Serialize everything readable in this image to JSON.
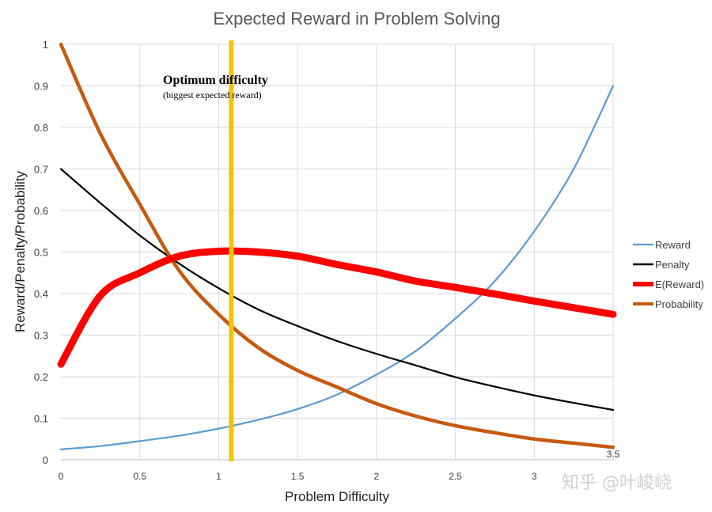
{
  "watermark": "知乎 @叶峻峣",
  "chart_data": {
    "type": "line",
    "title": "Expected Reward in Problem Solving",
    "xlabel": "Problem Difficulty",
    "ylabel": "Reward/Penalty/Probability",
    "xlim": [
      0,
      3.5
    ],
    "ylim": [
      0,
      1
    ],
    "xticks": [
      "0",
      "0.5",
      "1",
      "1.5",
      "2",
      "2.5",
      "3",
      "3.5"
    ],
    "yticks": [
      "0",
      "0.1",
      "0.2",
      "0.3",
      "0.4",
      "0.5",
      "0.6",
      "0.7",
      "0.8",
      "0.9",
      "1"
    ],
    "grid": "vertical and horizontal",
    "legend_position": "right",
    "x": [
      0,
      0.25,
      0.5,
      0.75,
      1.0,
      1.25,
      1.5,
      1.75,
      2.0,
      2.25,
      2.5,
      2.75,
      3.0,
      3.25,
      3.5
    ],
    "series": [
      {
        "name": "Reward",
        "color": "#5b9bd5",
        "values": [
          0.025,
          0.033,
          0.045,
          0.058,
          0.075,
          0.096,
          0.122,
          0.157,
          0.205,
          0.262,
          0.34,
          0.43,
          0.55,
          0.7,
          0.9
        ]
      },
      {
        "name": "Penalty",
        "color": "#000000",
        "values": [
          0.7,
          0.618,
          0.54,
          0.472,
          0.413,
          0.362,
          0.322,
          0.286,
          0.255,
          0.227,
          0.199,
          0.176,
          0.155,
          0.137,
          0.12
        ]
      },
      {
        "name": "E(Reward)",
        "color": "#ff0000",
        "values": [
          0.23,
          0.395,
          0.45,
          0.49,
          0.502,
          0.5,
          0.49,
          0.47,
          0.452,
          0.43,
          0.415,
          0.399,
          0.382,
          0.366,
          0.35
        ]
      },
      {
        "name": "Probability",
        "color": "#c55a11",
        "values": [
          1.0,
          0.785,
          0.615,
          0.455,
          0.35,
          0.27,
          0.215,
          0.175,
          0.135,
          0.105,
          0.082,
          0.065,
          0.05,
          0.04,
          0.03
        ]
      }
    ],
    "annotations": {
      "optimum_x": 1.08,
      "optimum_color": "#f5c400",
      "label": "Optimum difficulty",
      "sublabel": "(biggest expected reward)"
    }
  }
}
